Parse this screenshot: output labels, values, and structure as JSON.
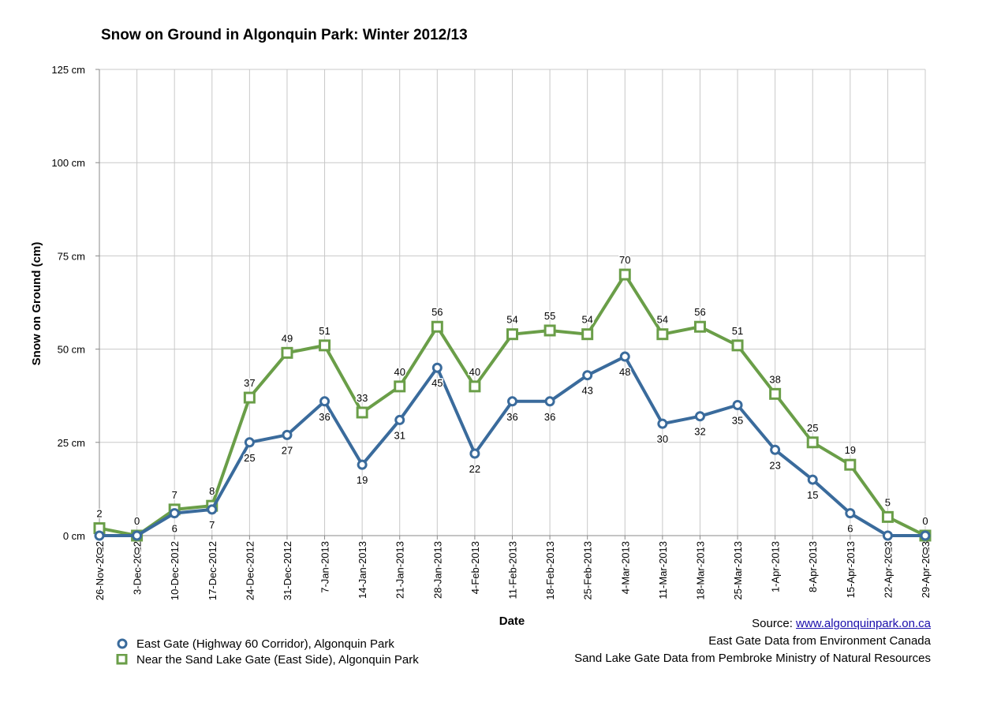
{
  "chart_data": {
    "type": "line",
    "title": "Snow on Ground in Algonquin Park: Winter 2012/13",
    "xlabel": "Date",
    "ylabel": "Snow on Ground (cm)",
    "ylim": [
      0,
      125
    ],
    "y_ticks": [
      0,
      25,
      50,
      75,
      100,
      125
    ],
    "y_tick_labels": [
      "0 cm",
      "25 cm",
      "50 cm",
      "75 cm",
      "100 cm",
      "125 cm"
    ],
    "grid": true,
    "legend_position": "bottom-left",
    "categories": [
      "26-Nov-2012",
      "3-Dec-2012",
      "10-Dec-2012",
      "17-Dec-2012",
      "24-Dec-2012",
      "31-Dec-2012",
      "7-Jan-2013",
      "14-Jan-2013",
      "21-Jan-2013",
      "28-Jan-2013",
      "4-Feb-2013",
      "11-Feb-2013",
      "18-Feb-2013",
      "25-Feb-2013",
      "4-Mar-2013",
      "11-Mar-2013",
      "18-Mar-2013",
      "25-Mar-2013",
      "1-Apr-2013",
      "8-Apr-2013",
      "15-Apr-2013",
      "22-Apr-2013",
      "29-Apr-2013"
    ],
    "series": [
      {
        "name": "East Gate (Highway 60 Corridor), Algonquin Park",
        "color": "#3a6b9c",
        "marker": "circle",
        "values": [
          0,
          0,
          6,
          7,
          25,
          27,
          36,
          19,
          31,
          45,
          22,
          36,
          36,
          43,
          48,
          30,
          32,
          35,
          23,
          15,
          6,
          0,
          0
        ]
      },
      {
        "name": "Near the Sand Lake Gate (East Side), Algonquin Park",
        "color": "#6a9e48",
        "marker": "square",
        "values": [
          2,
          0,
          7,
          8,
          37,
          49,
          51,
          33,
          40,
          56,
          40,
          54,
          55,
          54,
          70,
          54,
          56,
          51,
          38,
          25,
          19,
          5,
          0
        ]
      }
    ]
  },
  "source": {
    "prefix": "Source: ",
    "link": "www.algonquinpark.on.ca",
    "line2": "East Gate Data from Environment Canada",
    "line3": "Sand Lake Gate Data from Pembroke Ministry of Natural Resources"
  }
}
